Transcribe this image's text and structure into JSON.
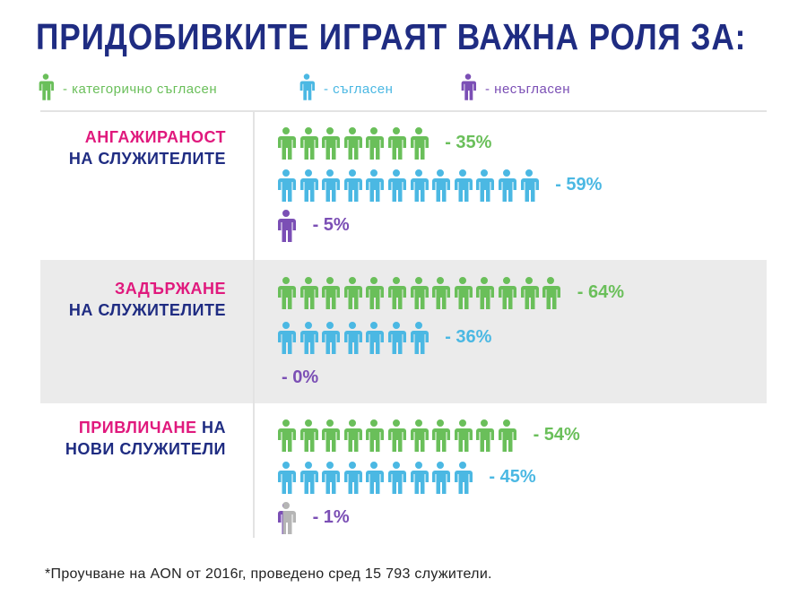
{
  "title": "ПРИДОБИВКИТЕ ИГРАЯТ ВАЖНА РОЛЯ ЗА:",
  "legend": [
    {
      "label": "- категорично съгласен",
      "color": "#6abf5a"
    },
    {
      "label": "- съгласен",
      "color": "#4bb8e3"
    },
    {
      "label": "- несъгласен",
      "color": "#7b4fb5"
    }
  ],
  "chart_data": {
    "type": "pictogram",
    "series_colors": {
      "strongly_agree": "#6abf5a",
      "agree": "#4bb8e3",
      "disagree": "#7b4fb5",
      "remainder": "#b5b5b5"
    },
    "categories": [
      {
        "label_pink": "АНГАЖИРАНОСТ",
        "label_navy_inline": "",
        "label_navy": "НА СЛУЖИТЕЛИТЕ",
        "rows": [
          {
            "key": "strongly_agree",
            "value": 35,
            "text": "- 35%",
            "icons": 7
          },
          {
            "key": "agree",
            "value": 59,
            "text": "- 59%",
            "icons": 12
          },
          {
            "key": "disagree",
            "value": 5,
            "text": "- 5%",
            "icons": 1
          }
        ]
      },
      {
        "label_pink": "ЗАДЪРЖАНЕ",
        "label_navy_inline": "",
        "label_navy": "НА СЛУЖИТЕЛИТЕ",
        "rows": [
          {
            "key": "strongly_agree",
            "value": 64,
            "text": "- 64%",
            "icons": 13
          },
          {
            "key": "agree",
            "value": 36,
            "text": "- 36%",
            "icons": 7
          },
          {
            "key": "disagree",
            "value": 0,
            "text": "- 0%",
            "icons": 0
          }
        ]
      },
      {
        "label_pink": "ПРИВЛИЧАНЕ",
        "label_navy_inline": " НА",
        "label_navy": "НОВИ СЛУЖИТЕЛИ",
        "rows": [
          {
            "key": "strongly_agree",
            "value": 54,
            "text": "- 54%",
            "icons": 11
          },
          {
            "key": "agree",
            "value": 45,
            "text": "- 45%",
            "icons": 9
          },
          {
            "key": "disagree",
            "value": 1,
            "text": "- 1%",
            "icons": 0.25
          }
        ]
      }
    ]
  },
  "footnote": "*Проучване на AON от 2016г, проведено сред 15 793 служители."
}
